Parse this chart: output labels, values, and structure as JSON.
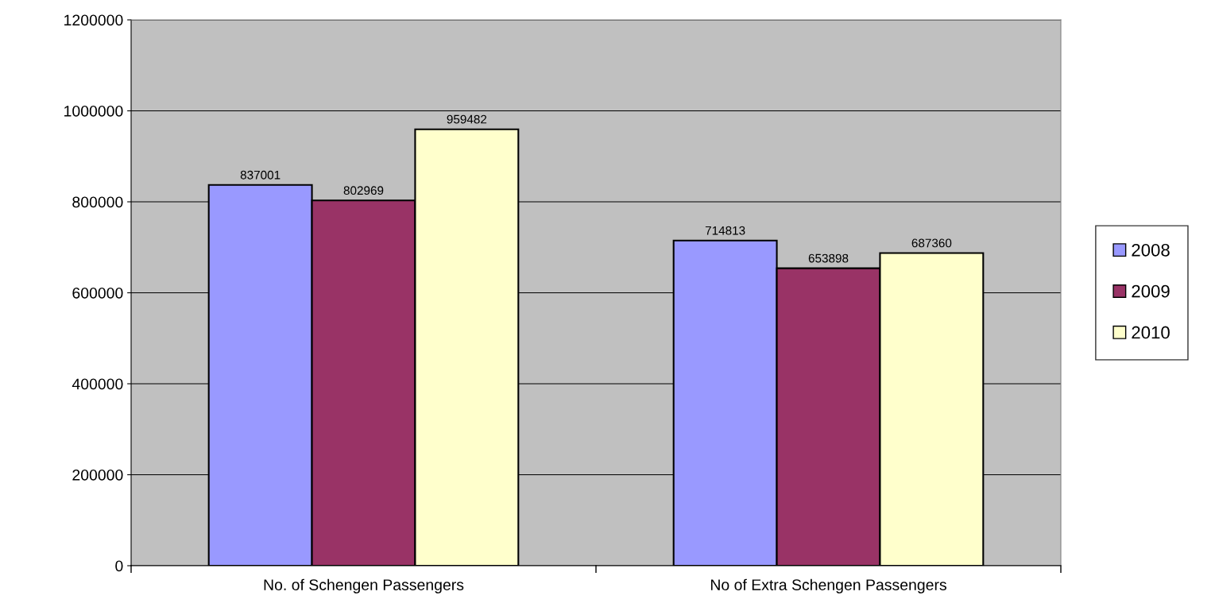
{
  "chart_data": {
    "type": "bar",
    "categories": [
      "No. of Schengen Passengers",
      "No of Extra Schengen Passengers"
    ],
    "series": [
      {
        "name": "2008",
        "color": "#9999ff",
        "values": [
          837001,
          714813
        ]
      },
      {
        "name": "2009",
        "color": "#993366",
        "values": [
          802969,
          653898
        ]
      },
      {
        "name": "2010",
        "color": "#ffffcc",
        "values": [
          959482,
          687360
        ]
      }
    ],
    "ylim": [
      0,
      1200000
    ],
    "yticks": [
      0,
      200000,
      400000,
      600000,
      800000,
      1000000,
      1200000
    ],
    "grid": "y",
    "legend": "right",
    "data_labels": true
  }
}
